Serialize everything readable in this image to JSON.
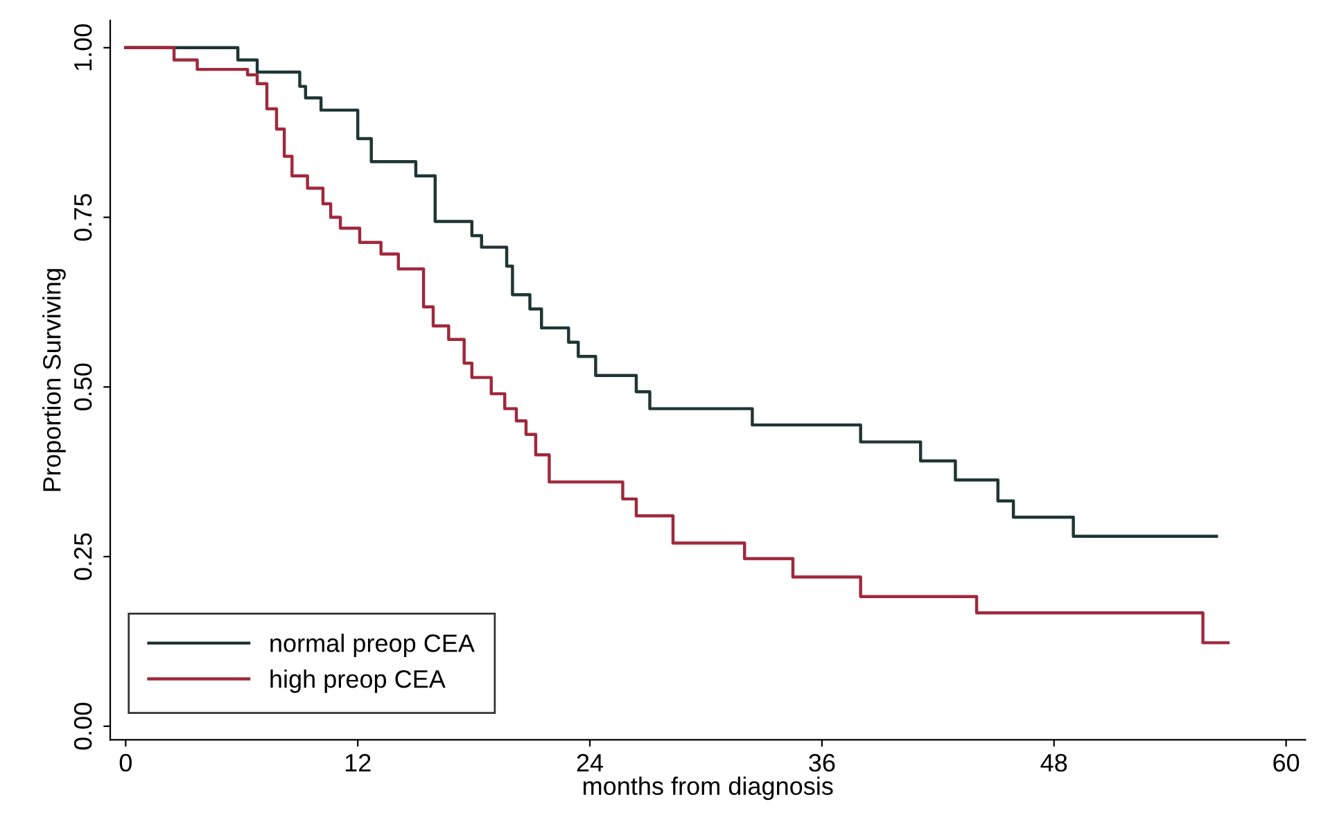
{
  "chart_data": {
    "type": "step",
    "xlabel": "months from diagnosis",
    "ylabel": "Proportion Surviving",
    "xlim": [
      -0.8,
      61
    ],
    "ylim": [
      -0.02,
      1.04
    ],
    "xticks": [
      0,
      12,
      24,
      36,
      48,
      60
    ],
    "yticks": [
      {
        "value": 0,
        "label": "0.00"
      },
      {
        "value": 0.25,
        "label": "0.25"
      },
      {
        "value": 0.5,
        "label": "0.50"
      },
      {
        "value": 0.75,
        "label": "0.75"
      },
      {
        "value": 1,
        "label": "1.00"
      }
    ],
    "grid": false,
    "legend": "bottom left",
    "line_style": "solid",
    "marker": "none",
    "series": [
      {
        "name": "normal preop CEA",
        "color": "#1f3535",
        "x": [
          0,
          5.8,
          6.8,
          9.0,
          9.3,
          10.1,
          12.0,
          12.7,
          15.0,
          16.0,
          17.9,
          18.4,
          19.7,
          20.0,
          20.9,
          21.5,
          22.9,
          23.4,
          24.3,
          26.4,
          27.1,
          32.4,
          38.0,
          41.1,
          42.9,
          45.1,
          45.9,
          49.0,
          56.4
        ],
        "values": [
          1.0,
          0.982,
          0.964,
          0.943,
          0.926,
          0.908,
          0.866,
          0.832,
          0.811,
          0.744,
          0.723,
          0.706,
          0.678,
          0.636,
          0.615,
          0.587,
          0.566,
          0.545,
          0.517,
          0.493,
          0.468,
          0.444,
          0.419,
          0.391,
          0.363,
          0.332,
          0.308,
          0.28,
          0.28
        ]
      },
      {
        "name": "high preop CEA",
        "color": "#a0283c",
        "x": [
          0,
          2.5,
          3.7,
          6.3,
          6.8,
          7.3,
          7.8,
          8.2,
          8.6,
          9.4,
          10.2,
          10.6,
          11.1,
          12.1,
          13.2,
          14.1,
          15.4,
          15.9,
          16.7,
          17.5,
          17.9,
          18.9,
          19.6,
          20.2,
          20.7,
          21.2,
          21.9,
          25.7,
          26.4,
          28.3,
          32.0,
          34.5,
          38.0,
          44.0,
          55.7,
          57.0
        ],
        "values": [
          1.0,
          0.982,
          0.968,
          0.96,
          0.947,
          0.91,
          0.88,
          0.84,
          0.811,
          0.793,
          0.77,
          0.75,
          0.734,
          0.713,
          0.696,
          0.674,
          0.618,
          0.59,
          0.57,
          0.535,
          0.514,
          0.49,
          0.468,
          0.45,
          0.43,
          0.4,
          0.36,
          0.335,
          0.31,
          0.27,
          0.247,
          0.22,
          0.191,
          0.167,
          0.123,
          0.123
        ]
      }
    ]
  }
}
